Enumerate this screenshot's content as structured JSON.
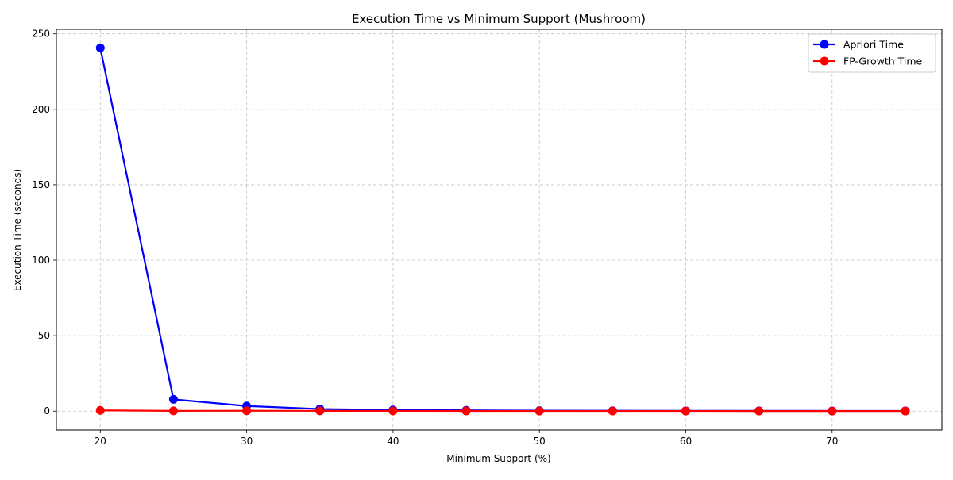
{
  "chart_data": {
    "type": "line",
    "title": "Execution Time vs Minimum Support (Mushroom)",
    "xlabel": "Minimum Support (%)",
    "ylabel": "Execution Time (seconds)",
    "x": [
      20,
      25,
      30,
      35,
      40,
      45,
      50,
      55,
      60,
      65,
      70,
      75
    ],
    "xticks": [
      20,
      30,
      40,
      50,
      60,
      70
    ],
    "yticks": [
      0,
      50,
      100,
      150,
      200,
      250
    ],
    "xlim": [
      17,
      77.5
    ],
    "ylim": [
      -12.5,
      253
    ],
    "grid": true,
    "legend_position": "top-right",
    "series": [
      {
        "name": "Apriori Time",
        "color": "#0000ff",
        "values": [
          240.7,
          7.8,
          3.4,
          1.4,
          0.8,
          0.5,
          0.3,
          0.25,
          0.2,
          0.2,
          0.15,
          0.15
        ]
      },
      {
        "name": "FP-Growth Time",
        "color": "#ff0000",
        "values": [
          0.5,
          0.2,
          0.25,
          0.2,
          0.15,
          0.1,
          0.08,
          0.08,
          0.08,
          0.06,
          0.06,
          0.06
        ]
      }
    ]
  }
}
